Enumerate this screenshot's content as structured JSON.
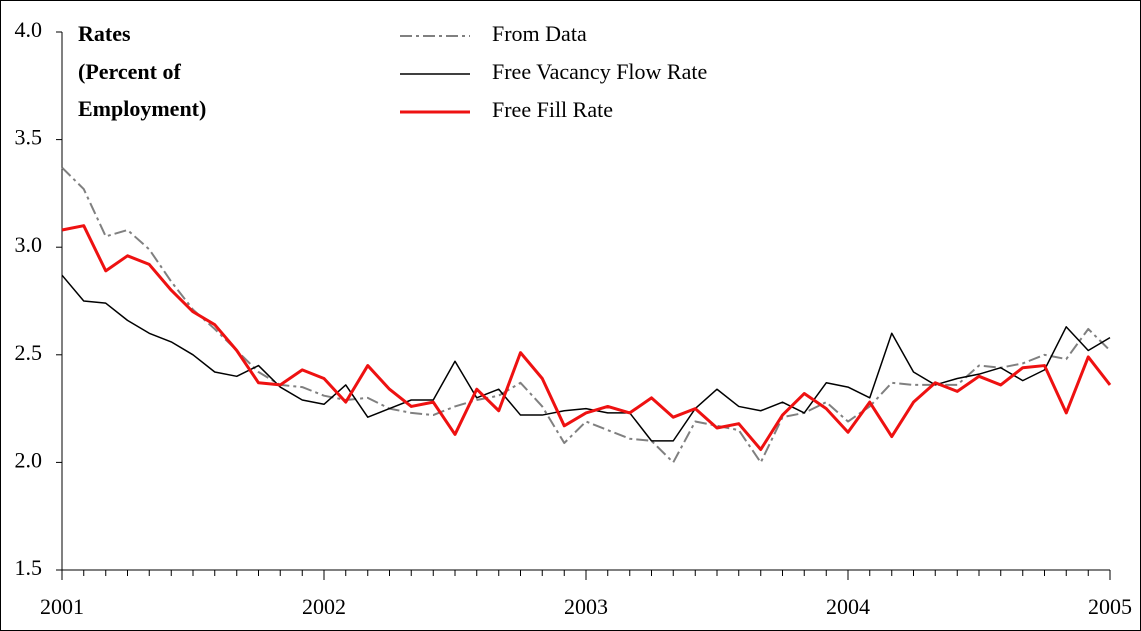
{
  "chart_data": {
    "type": "line",
    "title": [
      "Rates",
      "(Percent of",
      "Employment)"
    ],
    "x": [
      2001,
      2001.083,
      2001.167,
      2001.25,
      2001.333,
      2001.417,
      2001.5,
      2001.583,
      2001.667,
      2001.75,
      2001.833,
      2001.917,
      2002,
      2002.083,
      2002.167,
      2002.25,
      2002.333,
      2002.417,
      2002.5,
      2002.583,
      2002.667,
      2002.75,
      2002.833,
      2002.917,
      2003,
      2003.083,
      2003.167,
      2003.25,
      2003.333,
      2003.417,
      2003.5,
      2003.583,
      2003.667,
      2003.75,
      2003.833,
      2003.917,
      2004,
      2004.083,
      2004.167,
      2004.25,
      2004.333,
      2004.417,
      2004.5,
      2004.583,
      2004.667,
      2004.75,
      2004.833,
      2004.917,
      2005
    ],
    "series": [
      {
        "name": "From Data",
        "color": "#808080",
        "dash": "12,4,3,4",
        "width": 2,
        "values": [
          3.37,
          3.27,
          3.05,
          3.08,
          2.99,
          2.84,
          2.71,
          2.62,
          2.52,
          2.42,
          2.36,
          2.35,
          2.31,
          2.29,
          2.3,
          2.25,
          2.23,
          2.22,
          2.26,
          2.29,
          2.31,
          2.37,
          2.26,
          2.09,
          2.19,
          2.15,
          2.11,
          2.1,
          2.0,
          2.19,
          2.17,
          2.15,
          2.0,
          2.21,
          2.23,
          2.28,
          2.19,
          2.26,
          2.37,
          2.36,
          2.36,
          2.36,
          2.45,
          2.44,
          2.46,
          2.5,
          2.48,
          2.62,
          2.52
        ]
      },
      {
        "name": "Free Vacancy Flow Rate",
        "color": "#000000",
        "width": 1.5,
        "values": [
          2.87,
          2.75,
          2.74,
          2.66,
          2.6,
          2.56,
          2.5,
          2.42,
          2.4,
          2.45,
          2.35,
          2.29,
          2.27,
          2.36,
          2.21,
          2.25,
          2.29,
          2.29,
          2.47,
          2.3,
          2.34,
          2.22,
          2.22,
          2.24,
          2.25,
          2.23,
          2.23,
          2.1,
          2.1,
          2.25,
          2.34,
          2.26,
          2.24,
          2.28,
          2.23,
          2.37,
          2.35,
          2.3,
          2.6,
          2.42,
          2.36,
          2.39,
          2.41,
          2.44,
          2.38,
          2.43,
          2.63,
          2.52,
          2.58
        ]
      },
      {
        "name": "Free Fill Rate",
        "color": "#ee1111",
        "width": 3,
        "values": [
          3.08,
          3.1,
          2.89,
          2.96,
          2.92,
          2.8,
          2.7,
          2.64,
          2.52,
          2.37,
          2.36,
          2.43,
          2.39,
          2.28,
          2.45,
          2.34,
          2.26,
          2.28,
          2.13,
          2.34,
          2.24,
          2.51,
          2.39,
          2.17,
          2.23,
          2.26,
          2.23,
          2.3,
          2.21,
          2.25,
          2.16,
          2.18,
          2.06,
          2.22,
          2.32,
          2.25,
          2.14,
          2.28,
          2.12,
          2.28,
          2.37,
          2.33,
          2.4,
          2.36,
          2.44,
          2.45,
          2.23,
          2.49,
          2.36
        ]
      }
    ],
    "xlim": [
      2001,
      2005
    ],
    "xticks": [
      2001,
      2002,
      2003,
      2004,
      2005
    ],
    "ylim": [
      1.5,
      4.0
    ],
    "yticks": [
      1.5,
      {
        "value": 2.0,
        "label": "2.0"
      },
      2.5,
      {
        "value": 3.0,
        "label": "3.0"
      },
      3.5,
      {
        "value": 4.0,
        "label": "4.0"
      }
    ]
  }
}
